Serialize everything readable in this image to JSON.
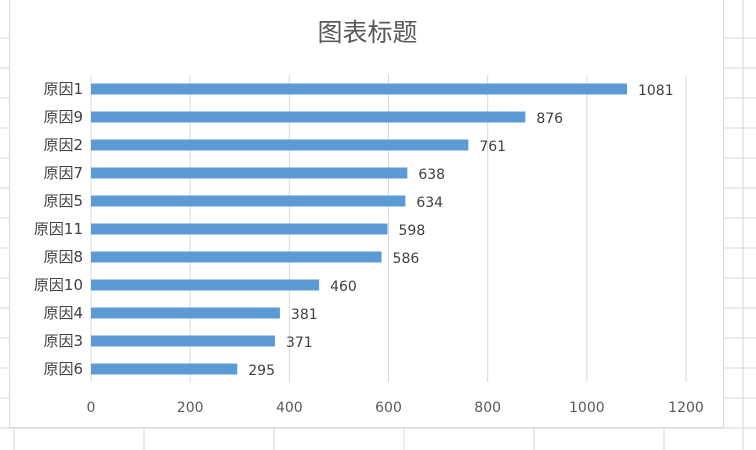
{
  "chart_data": {
    "type": "bar",
    "orientation": "horizontal",
    "title": "图表标题",
    "categories": [
      "原因1",
      "原因9",
      "原因2",
      "原因7",
      "原因5",
      "原因11",
      "原因8",
      "原因10",
      "原因4",
      "原因3",
      "原因6"
    ],
    "values": [
      1081,
      876,
      761,
      638,
      634,
      598,
      586,
      460,
      381,
      371,
      295
    ],
    "xlim": [
      0,
      1200
    ],
    "xticks": [
      0,
      200,
      400,
      600,
      800,
      1000,
      1200
    ],
    "grid": true,
    "data_labels": true,
    "bar_color": "#5b9bd5",
    "grid_color": "#d9d9d9"
  }
}
